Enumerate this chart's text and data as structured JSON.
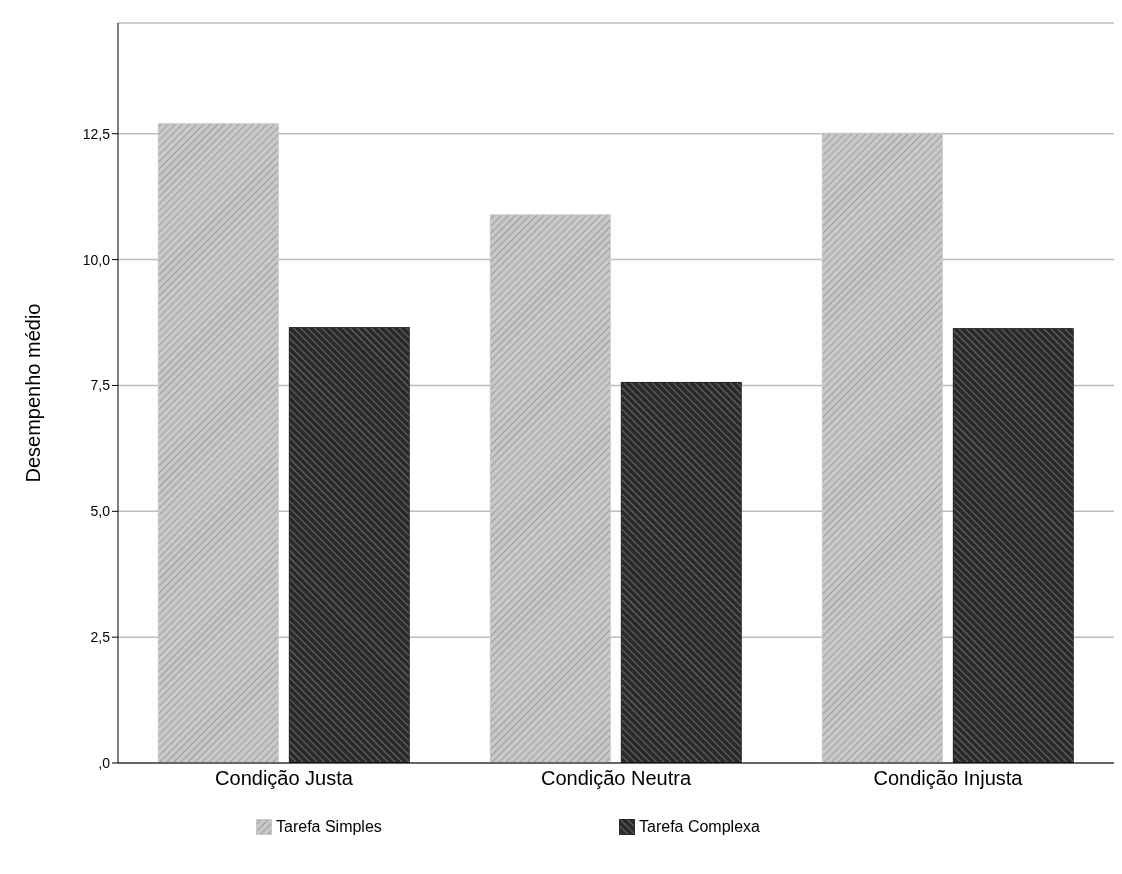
{
  "chart_data": {
    "type": "bar",
    "ylabel": "Desempenho médio",
    "categories": [
      "Condição Justa",
      "Condição Neutra",
      "Condição Injusta"
    ],
    "series": [
      {
        "name": "Tarefa Simples",
        "color": "#c8c8c8",
        "values": [
          12.71,
          10.9,
          12.52
        ]
      },
      {
        "name": "Tarefa Complexa",
        "color": "#2a2a2a",
        "values": [
          8.66,
          7.57,
          8.64
        ]
      }
    ],
    "ylim": [
      0,
      14.7
    ],
    "yticks": [
      {
        "value": 0,
        "label": ",0"
      },
      {
        "value": 2.5,
        "label": "2,5"
      },
      {
        "value": 5,
        "label": "5,0"
      },
      {
        "value": 7.5,
        "label": "7,5"
      },
      {
        "value": 10,
        "label": "10,0"
      },
      {
        "value": 12.5,
        "label": "12,5"
      }
    ],
    "grid": "y",
    "legend": "bottom"
  }
}
